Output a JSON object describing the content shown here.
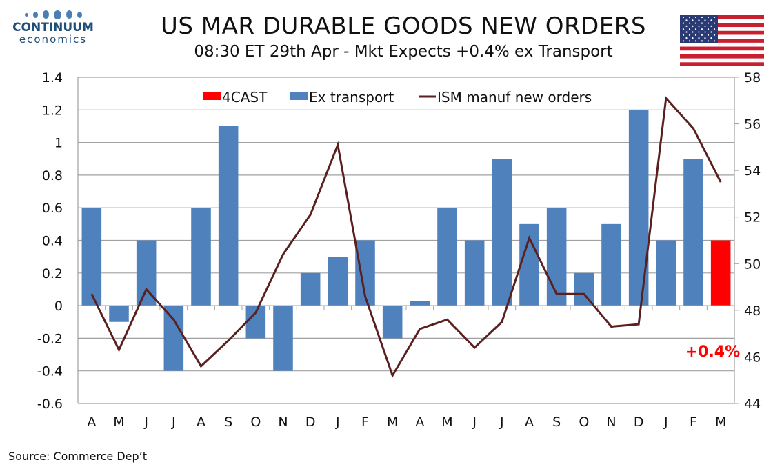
{
  "logo": {
    "line1": "CONTINUUM",
    "line2": "economics"
  },
  "title": "US MAR DURABLE GOODS NEW ORDERS",
  "subtitle": "08:30 ET 29th Apr - Mkt Expects +0.4% ex Transport",
  "source": "Source: Commerce Dep’t",
  "colors": {
    "bars": "#4f81bd",
    "forecast": "#ff0000",
    "line": "#5a2020"
  },
  "chart_data": {
    "type": "bar",
    "title": "US MAR DURABLE GOODS NEW ORDERS",
    "categories": [
      "A",
      "M",
      "J",
      "J",
      "A",
      "S",
      "O",
      "N",
      "D",
      "J",
      "F",
      "M",
      "A",
      "M",
      "J",
      "J",
      "A",
      "S",
      "O",
      "N",
      "D",
      "J",
      "F",
      "M"
    ],
    "series": [
      {
        "name": "Ex transport",
        "axis": "left",
        "type": "bar",
        "values": [
          0.6,
          -0.1,
          0.4,
          -0.4,
          0.6,
          1.1,
          -0.2,
          -0.4,
          0.2,
          0.3,
          0.4,
          -0.2,
          0.03,
          0.6,
          0.4,
          0.9,
          0.5,
          0.6,
          0.2,
          0.5,
          1.2,
          0.4,
          0.9,
          null
        ]
      },
      {
        "name": "4CAST",
        "axis": "left",
        "type": "bar",
        "values": [
          null,
          null,
          null,
          null,
          null,
          null,
          null,
          null,
          null,
          null,
          null,
          null,
          null,
          null,
          null,
          null,
          null,
          null,
          null,
          null,
          null,
          null,
          null,
          0.4
        ]
      },
      {
        "name": "ISM manuf new orders",
        "axis": "right",
        "type": "line",
        "values": [
          48.7,
          46.3,
          48.9,
          47.6,
          45.6,
          46.7,
          47.9,
          50.4,
          52.1,
          55.1,
          48.6,
          45.2,
          47.2,
          47.6,
          46.4,
          47.5,
          51.1,
          48.7,
          48.7,
          47.3,
          47.4,
          57.1,
          55.8,
          53.5
        ]
      }
    ],
    "ylim_left": [
      -0.6,
      1.4
    ],
    "yticks_left": [
      "1.4",
      "1.2",
      "1",
      "0.8",
      "0.6",
      "0.4",
      "0.2",
      "0",
      "-0.2",
      "-0.4",
      "-0.6"
    ],
    "ylim_right": [
      44,
      58
    ],
    "yticks_right": [
      "58",
      "56",
      "54",
      "52",
      "50",
      "48",
      "46",
      "44"
    ],
    "annotation": "+0.4%",
    "legend": [
      "4CAST",
      "Ex transport",
      "ISM manuf new orders"
    ],
    "legend_position": "top",
    "grid": true
  }
}
